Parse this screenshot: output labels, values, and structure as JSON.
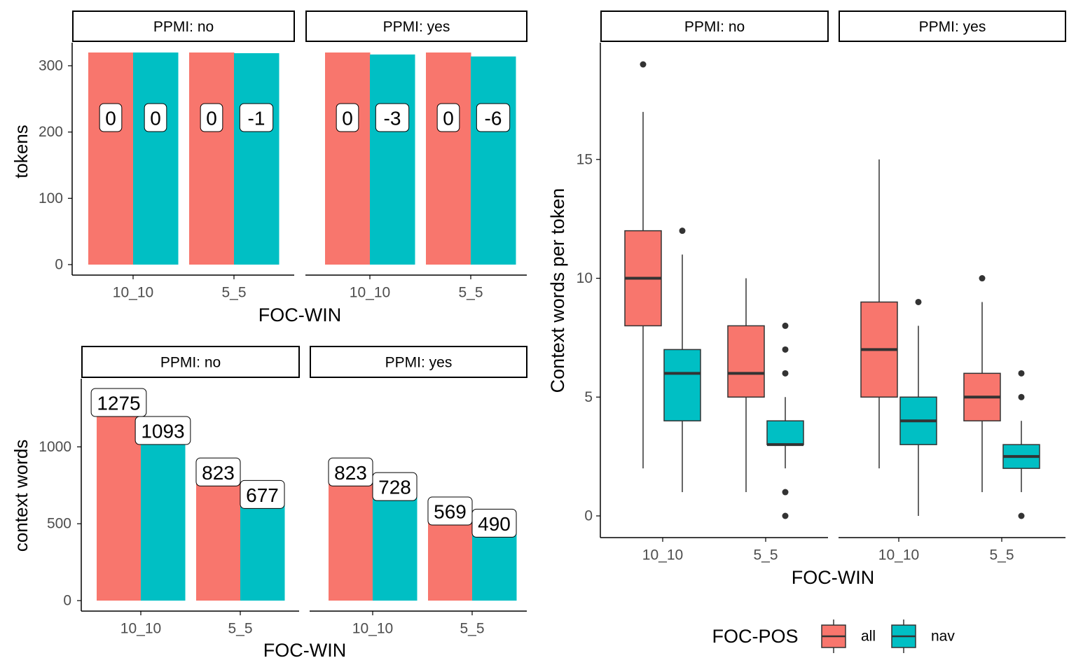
{
  "colors": {
    "all": "#F8766D",
    "nav": "#00BFC4",
    "strip_border": "#000000",
    "axis": "#000000",
    "box_line": "#333333",
    "tick_text": "#4D4D4D"
  },
  "chart_data": [
    {
      "type": "bar",
      "id": "tokens",
      "ylabel": "tokens",
      "xlabel": "FOC-WIN",
      "ylim": [
        0,
        320
      ],
      "yticks": [
        0,
        100,
        200,
        300
      ],
      "categories": [
        "10_10",
        "5_5"
      ],
      "facets": [
        {
          "strip": "PPMI: no",
          "series": [
            {
              "key": "all",
              "values": [
                320,
                320
              ],
              "labels": [
                "0",
                "0"
              ]
            },
            {
              "key": "nav",
              "values": [
                320,
                319
              ],
              "labels": [
                "0",
                "-1"
              ]
            }
          ]
        },
        {
          "strip": "PPMI: yes",
          "series": [
            {
              "key": "all",
              "values": [
                320,
                320
              ],
              "labels": [
                "0",
                "0"
              ]
            },
            {
              "key": "nav",
              "values": [
                317,
                314
              ],
              "labels": [
                "-3",
                "-6"
              ]
            }
          ]
        }
      ]
    },
    {
      "type": "bar",
      "id": "context",
      "ylabel": "context words",
      "xlabel": "FOC-WIN",
      "ylim": [
        0,
        1275
      ],
      "yticks": [
        0,
        500,
        1000
      ],
      "categories": [
        "10_10",
        "5_5"
      ],
      "facets": [
        {
          "strip": "PPMI: no",
          "series": [
            {
              "key": "all",
              "values": [
                1275,
                823
              ],
              "labels": [
                "1275",
                "823"
              ]
            },
            {
              "key": "nav",
              "values": [
                1093,
                677
              ],
              "labels": [
                "1093",
                "677"
              ]
            }
          ]
        },
        {
          "strip": "PPMI: yes",
          "series": [
            {
              "key": "all",
              "values": [
                823,
                569
              ],
              "labels": [
                "823",
                "569"
              ]
            },
            {
              "key": "nav",
              "values": [
                728,
                490
              ],
              "labels": [
                "728",
                "490"
              ]
            }
          ]
        }
      ]
    },
    {
      "type": "box",
      "id": "boxplot",
      "ylabel": "Context words per token",
      "xlabel": "FOC-WIN",
      "ylim": [
        0,
        19
      ],
      "yticks": [
        0,
        5,
        10,
        15
      ],
      "categories": [
        "10_10",
        "5_5"
      ],
      "facets": [
        {
          "strip": "PPMI: no",
          "boxes": [
            {
              "key": "all",
              "cat": 0,
              "q1": 8,
              "median": 10,
              "q3": 12,
              "low": 2,
              "high": 17,
              "outliers": [
                19
              ]
            },
            {
              "key": "nav",
              "cat": 0,
              "q1": 4,
              "median": 6,
              "q3": 7,
              "low": 1,
              "high": 11,
              "outliers": [
                12
              ]
            },
            {
              "key": "all",
              "cat": 1,
              "q1": 5,
              "median": 6,
              "q3": 8,
              "low": 1,
              "high": 10,
              "outliers": []
            },
            {
              "key": "nav",
              "cat": 1,
              "q1": 3,
              "median": 3,
              "q3": 4,
              "low": 2,
              "high": 5,
              "outliers": [
                6,
                7,
                8,
                1,
                0
              ]
            }
          ]
        },
        {
          "strip": "PPMI: yes",
          "boxes": [
            {
              "key": "all",
              "cat": 0,
              "q1": 5,
              "median": 7,
              "q3": 9,
              "low": 2,
              "high": 15,
              "outliers": []
            },
            {
              "key": "nav",
              "cat": 0,
              "q1": 3,
              "median": 4,
              "q3": 5,
              "low": 0,
              "high": 8,
              "outliers": [
                9
              ]
            },
            {
              "key": "all",
              "cat": 1,
              "q1": 4,
              "median": 5,
              "q3": 6,
              "low": 1,
              "high": 9,
              "outliers": [
                10
              ]
            },
            {
              "key": "nav",
              "cat": 1,
              "q1": 2,
              "median": 2.5,
              "q3": 3,
              "low": 1,
              "high": 4,
              "outliers": [
                5,
                6,
                0
              ]
            }
          ]
        }
      ]
    }
  ],
  "legend": {
    "title": "FOC-POS",
    "position": "bottom",
    "items": [
      {
        "key": "all",
        "label": "all"
      },
      {
        "key": "nav",
        "label": "nav"
      }
    ]
  }
}
